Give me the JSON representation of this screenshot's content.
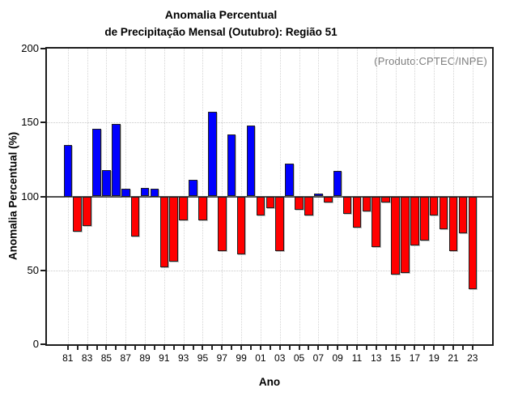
{
  "title": {
    "line1": "Anomalia Percentual",
    "line2": "de Precipitação Mensal (Outubro): Região 51"
  },
  "annotation": "(Produto:CPTEC/INPE)",
  "y_axis": {
    "title": "Anomalia Percentual (%)",
    "ticks": [
      0,
      50,
      100,
      150,
      200
    ]
  },
  "x_axis": {
    "title": "Ano",
    "tick_labels": [
      "81",
      "83",
      "85",
      "87",
      "89",
      "91",
      "93",
      "95",
      "97",
      "99",
      "01",
      "03",
      "05",
      "07",
      "09",
      "11",
      "13",
      "15",
      "17",
      "19",
      "21",
      "23"
    ]
  },
  "colors": {
    "above_baseline": "#0000ff",
    "below_baseline": "#ff0000",
    "baseline_line": "#4d4d4d",
    "grid": "#c9c9c9",
    "annotation_text": "#7d7d7d"
  },
  "chart_data": {
    "type": "bar",
    "title": "Anomalia Percentual de Precipitação Mensal (Outubro): Região 51",
    "xlabel": "Ano",
    "ylabel": "Anomalia Percentual (%)",
    "ylim": [
      0,
      200
    ],
    "baseline": 100,
    "grid": true,
    "legend": "none",
    "categories": [
      "81",
      "82",
      "83",
      "84",
      "85",
      "86",
      "87",
      "88",
      "89",
      "90",
      "91",
      "92",
      "93",
      "94",
      "95",
      "96",
      "97",
      "98",
      "99",
      "00",
      "01",
      "02",
      "03",
      "04",
      "05",
      "06",
      "07",
      "08",
      "09",
      "10",
      "11",
      "12",
      "13",
      "14",
      "15",
      "16",
      "17",
      "18",
      "19",
      "20",
      "21",
      "22",
      "23"
    ],
    "values": [
      135,
      76,
      80,
      146,
      118,
      149,
      105,
      73,
      106,
      105,
      52,
      56,
      84,
      111,
      84,
      157,
      63,
      142,
      61,
      148,
      87,
      92,
      63,
      122,
      91,
      87,
      102,
      96,
      117,
      88,
      79,
      90,
      66,
      96,
      47,
      48,
      67,
      70,
      87,
      78,
      63,
      75,
      37
    ]
  }
}
